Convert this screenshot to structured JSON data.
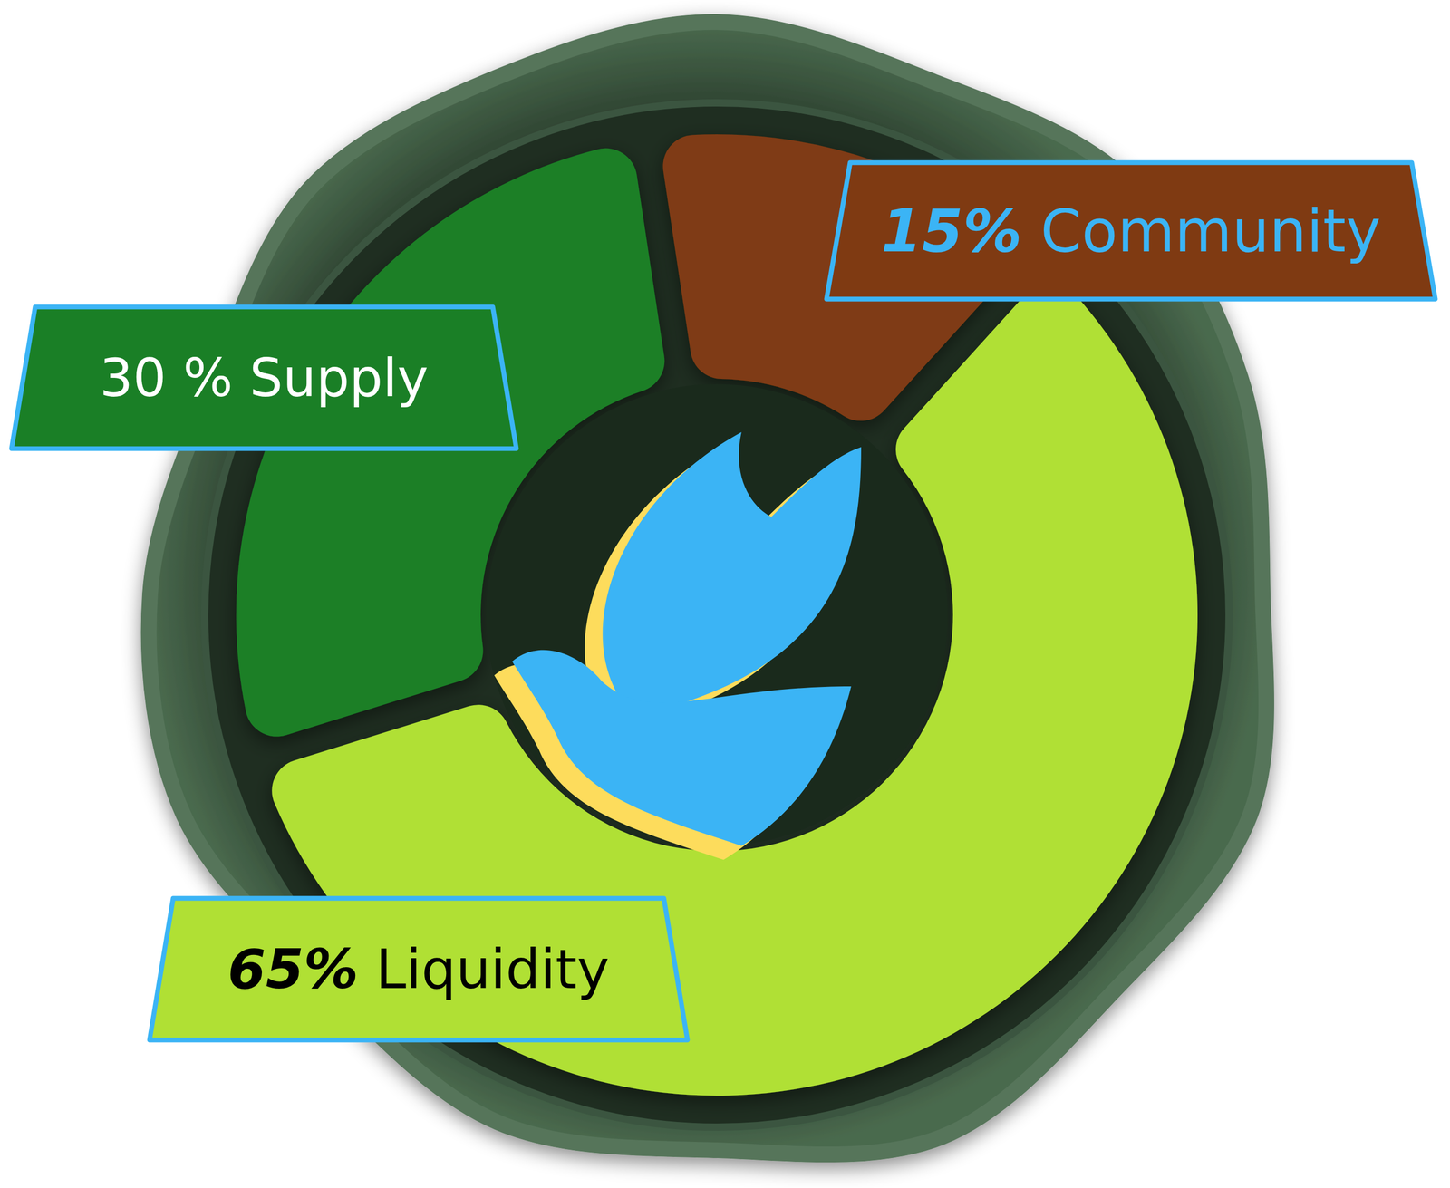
{
  "chart_data": {
    "type": "donut",
    "categories": [
      "Community",
      "Liquidity",
      "Supply"
    ],
    "values": [
      15,
      65,
      30
    ],
    "value_labels": [
      "15%",
      "65%",
      "30 %"
    ],
    "colors": [
      "#7f3a12",
      "#b0e034",
      "#1a7f26"
    ],
    "data_labels": true
  }
}
